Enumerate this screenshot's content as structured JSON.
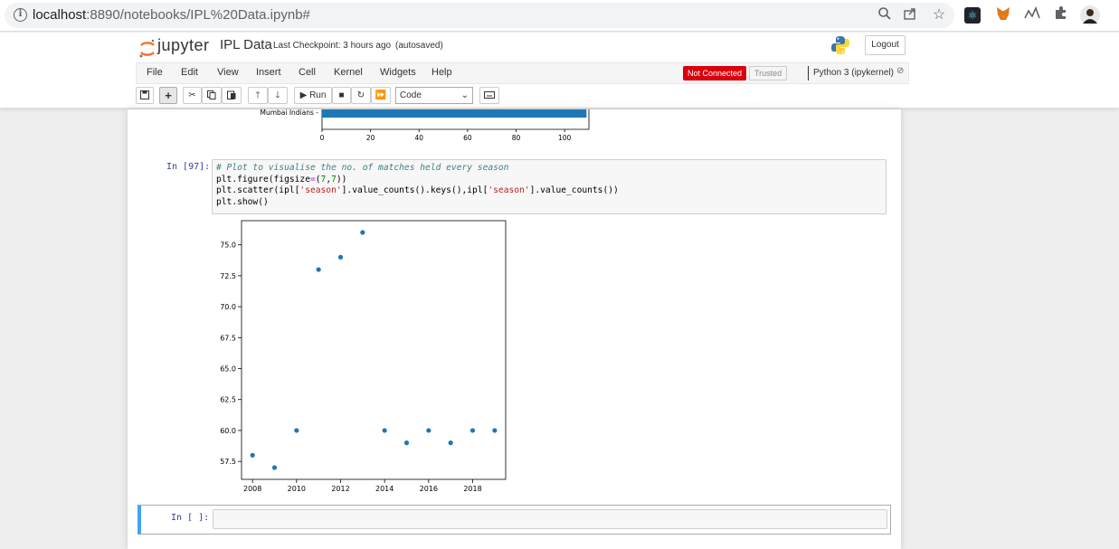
{
  "browser": {
    "url_host": "localhost",
    "url_path": ":8890/notebooks/IPL%20Data.ipynb#"
  },
  "header": {
    "logo_text": "jupyter",
    "notebook_name": "IPL Data",
    "checkpoint": "Last Checkpoint: 3 hours ago",
    "autosave": "(autosaved)",
    "logout_label": "Logout"
  },
  "menu": {
    "items": [
      "File",
      "Edit",
      "View",
      "Insert",
      "Cell",
      "Kernel",
      "Widgets",
      "Help"
    ],
    "status": "Not Connected",
    "trusted": "Trusted",
    "kernel": "Python 3 (ipykernel)"
  },
  "toolbar": {
    "run_label": "Run",
    "cell_type": "Code"
  },
  "previous_output": {
    "chart_data": {
      "type": "bar",
      "orientation": "horizontal",
      "categories": [
        "Mumbai Indians"
      ],
      "values": [
        109
      ],
      "xlim": [
        0,
        110
      ],
      "xticks": [
        0,
        20,
        40,
        60,
        80,
        100
      ]
    }
  },
  "cell_97": {
    "prompt": "In [97]:",
    "code": [
      "# Plot to visualise the no. of matches held every season",
      "plt.figure(figsize=(7,7))",
      "plt.scatter(ipl['season'].value_counts().keys(),ipl['season'].value_counts())",
      "plt.show()"
    ]
  },
  "chart_data": {
    "type": "scatter",
    "x": [
      2008,
      2009,
      2010,
      2011,
      2012,
      2013,
      2014,
      2015,
      2016,
      2017,
      2018,
      2019
    ],
    "y": [
      58,
      57,
      60,
      73,
      74,
      76,
      60,
      59,
      60,
      59,
      60,
      60
    ],
    "xlim": [
      2007.5,
      2019.5
    ],
    "ylim": [
      56.05,
      76.95
    ],
    "xticks": [
      2008,
      2010,
      2012,
      2014,
      2016,
      2018
    ],
    "yticks": [
      57.5,
      60.0,
      62.5,
      65.0,
      67.5,
      70.0,
      72.5,
      75.0
    ],
    "ytick_labels": [
      "57.5",
      "60.0",
      "62.5",
      "65.0",
      "67.5",
      "70.0",
      "72.5",
      "75.0"
    ],
    "color": "#1f77b4",
    "grid": false
  },
  "empty_cell": {
    "prompt": "In [ ]:"
  }
}
